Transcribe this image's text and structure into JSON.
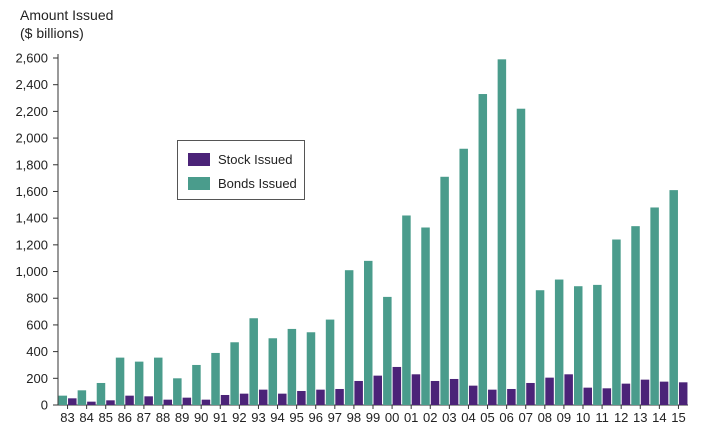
{
  "chart_data": {
    "type": "bar",
    "ylabel_line1": "Amount Issued",
    "ylabel_line2": "($ billions)",
    "ylim": [
      0,
      2600
    ],
    "yticks": [
      0,
      200,
      400,
      600,
      800,
      "1,000",
      "1,200",
      "1,400",
      "1,600",
      "1,800",
      "2,000",
      "2,200",
      "2,400",
      "2,600"
    ],
    "categories": [
      "83",
      "84",
      "85",
      "86",
      "87",
      "88",
      "89",
      "90",
      "91",
      "92",
      "93",
      "94",
      "95",
      "96",
      "97",
      "98",
      "99",
      "00",
      "01",
      "02",
      "03",
      "04",
      "05",
      "06",
      "07",
      "08",
      "09",
      "10",
      "11",
      "12",
      "13",
      "14",
      "15"
    ],
    "series": [
      {
        "name": "Stock Issued",
        "color": "#4b2378",
        "values": [
          50,
          25,
          35,
          70,
          65,
          40,
          55,
          40,
          75,
          85,
          115,
          85,
          105,
          115,
          120,
          180,
          220,
          285,
          230,
          180,
          195,
          145,
          115,
          120,
          165,
          205,
          230,
          130,
          125,
          160,
          190,
          175,
          170
        ]
      },
      {
        "name": "Bonds Issued",
        "color": "#4a9c8c",
        "values": [
          70,
          110,
          165,
          355,
          325,
          355,
          200,
          300,
          390,
          470,
          650,
          500,
          570,
          545,
          640,
          1010,
          1080,
          810,
          1420,
          1330,
          1710,
          1920,
          2330,
          2590,
          2220,
          860,
          940,
          890,
          900,
          1240,
          1340,
          1480,
          1610
        ]
      }
    ],
    "legend_position": "upper-left, inside plot",
    "grid": false
  }
}
